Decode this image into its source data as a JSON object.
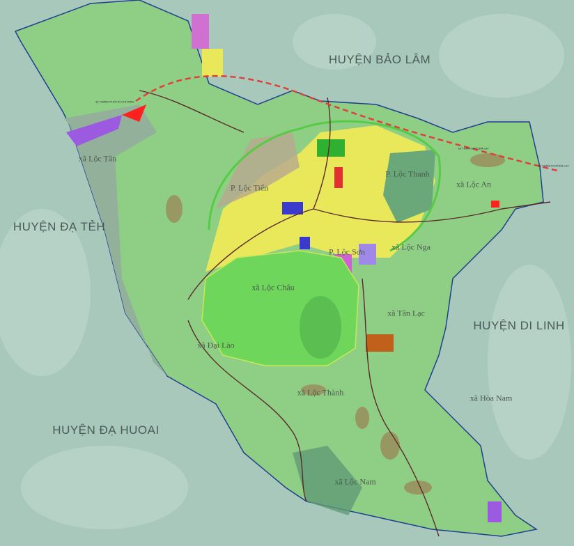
{
  "map": {
    "districts": [
      {
        "id": "bao-lam",
        "label": "HUYỆN BẢO LÂM"
      },
      {
        "id": "da-teh",
        "label": "HUYỆN ĐẠ TẺH"
      },
      {
        "id": "di-linh",
        "label": "HUYỆN DI LINH"
      },
      {
        "id": "da-huoai",
        "label": "HUYỆN ĐẠ HUOAI"
      }
    ],
    "communes": [
      {
        "id": "loc-tan",
        "label": "xã Lộc Tân"
      },
      {
        "id": "loc-tien",
        "label": "P. Lộc Tiến"
      },
      {
        "id": "loc-thanh-p",
        "label": "P. Lộc Thanh"
      },
      {
        "id": "loc-an",
        "label": "xã Lộc An"
      },
      {
        "id": "loc-nga",
        "label": "xã Lộc Nga"
      },
      {
        "id": "loc-son",
        "label": "P. Lộc Sơn"
      },
      {
        "id": "loc-chau",
        "label": "xã Lộc Châu"
      },
      {
        "id": "tan-lac",
        "label": "xã Tân Lạc"
      },
      {
        "id": "dai-lao",
        "label": "xã Đại Lào"
      },
      {
        "id": "loc-thanh",
        "label": "xã Lộc Thành"
      },
      {
        "id": "hoa-nam",
        "label": "xã Hòa Nam"
      },
      {
        "id": "loc-nam",
        "label": "xã Lộc Nam"
      }
    ],
    "road_notes": [
      {
        "id": "to-hcm",
        "label": "ĐI THÀNH PHỐ HỒ CHÍ MINH"
      },
      {
        "id": "to-dalat-1",
        "label": "ĐI THÀNH PHỐ ĐÀ LẠT"
      },
      {
        "id": "to-dalat-2",
        "label": "ĐI THÀNH PHỐ ĐÀ LẠT"
      }
    ],
    "colors": {
      "terrain": "#a8c8bc",
      "district_land": "#8fcf85",
      "west_zone": "#93b09a",
      "urban_yellow": "#e8e85a",
      "forest_green": "#6ed65a",
      "boundary": "#1f3f8f",
      "expressway": "#e0403a",
      "road": "#5a2a2a",
      "agri_brown": "#9a8a5a"
    }
  }
}
